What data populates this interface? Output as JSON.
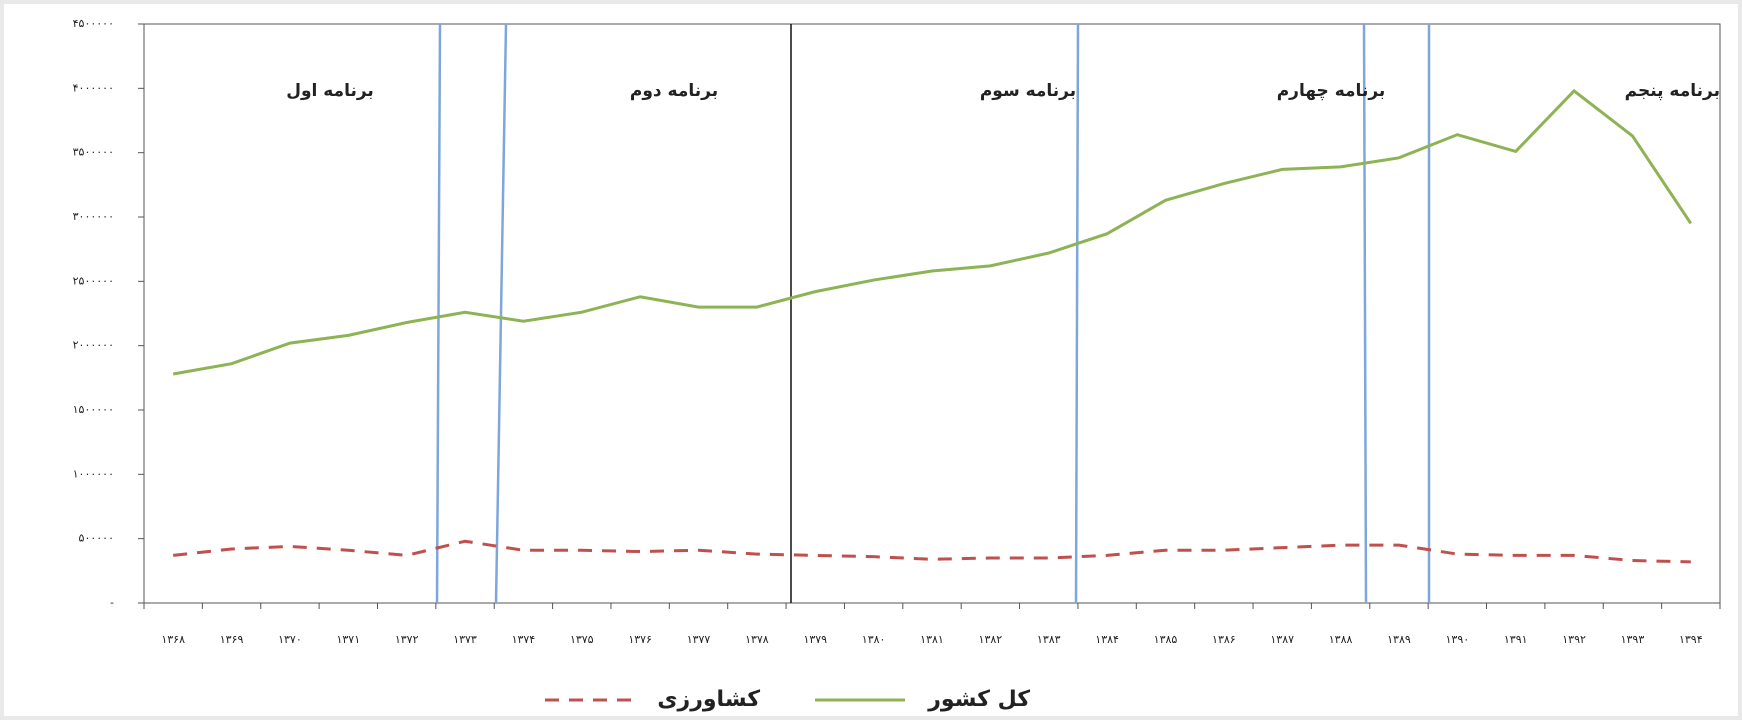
{
  "chart_data": {
    "type": "line",
    "categories": [
      "۱۳۶۸",
      "۱۳۶۹",
      "۱۳۷۰",
      "۱۳۷۱",
      "۱۳۷۲",
      "۱۳۷۳",
      "۱۳۷۴",
      "۱۳۷۵",
      "۱۳۷۶",
      "۱۳۷۷",
      "۱۳۷۸",
      "۱۳۷۹",
      "۱۳۸۰",
      "۱۳۸۱",
      "۱۳۸۲",
      "۱۳۸۳",
      "۱۳۸۴",
      "۱۳۸۵",
      "۱۳۸۶",
      "۱۳۸۷",
      "۱۳۸۸",
      "۱۳۸۹",
      "۱۳۹۰",
      "۱۳۹۱",
      "۱۳۹۲",
      "۱۳۹۳",
      "۱۳۹۴"
    ],
    "series": [
      {
        "name": "کل کشور",
        "color": "#8db354",
        "dash": false,
        "values": [
          1780000,
          1860000,
          2020000,
          2080000,
          2180000,
          2260000,
          2190000,
          2260000,
          2380000,
          2300000,
          2300000,
          2420000,
          2510000,
          2580000,
          2620000,
          2720000,
          2870000,
          3130000,
          3260000,
          3370000,
          3390000,
          3460000,
          3640000,
          3510000,
          3980000,
          3630000,
          2950000
        ]
      },
      {
        "name": "کشاورزی",
        "color": "#c0504d",
        "dash": true,
        "values": [
          370000,
          420000,
          440000,
          410000,
          370000,
          480000,
          410000,
          410000,
          400000,
          410000,
          380000,
          370000,
          360000,
          340000,
          350000,
          350000,
          370000,
          410000,
          410000,
          430000,
          450000,
          450000,
          380000,
          370000,
          370000,
          330000,
          320000
        ]
      }
    ],
    "ylim": [
      0,
      4500000
    ],
    "yticks": [
      {
        "value": 0,
        "label": "-"
      },
      {
        "value": 500000,
        "label": "۵۰۰۰۰۰"
      },
      {
        "value": 1000000,
        "label": "۱۰۰۰۰۰۰"
      },
      {
        "value": 1500000,
        "label": "۱۵۰۰۰۰۰"
      },
      {
        "value": 2000000,
        "label": "۲۰۰۰۰۰۰"
      },
      {
        "value": 2500000,
        "label": "۲۵۰۰۰۰۰"
      },
      {
        "value": 3000000,
        "label": "۳۰۰۰۰۰۰"
      },
      {
        "value": 3500000,
        "label": "۳۵۰۰۰۰۰"
      },
      {
        "value": 4000000,
        "label": "۴۰۰۰۰۰۰"
      },
      {
        "value": 4500000,
        "label": "۴۵۰۰۰۰۰"
      }
    ],
    "annotations": [
      "برنامه اول",
      "برنامه دوم",
      "برنامه سوم",
      "برنامه چهارم",
      "برنامه پنجم"
    ],
    "grid": false
  }
}
